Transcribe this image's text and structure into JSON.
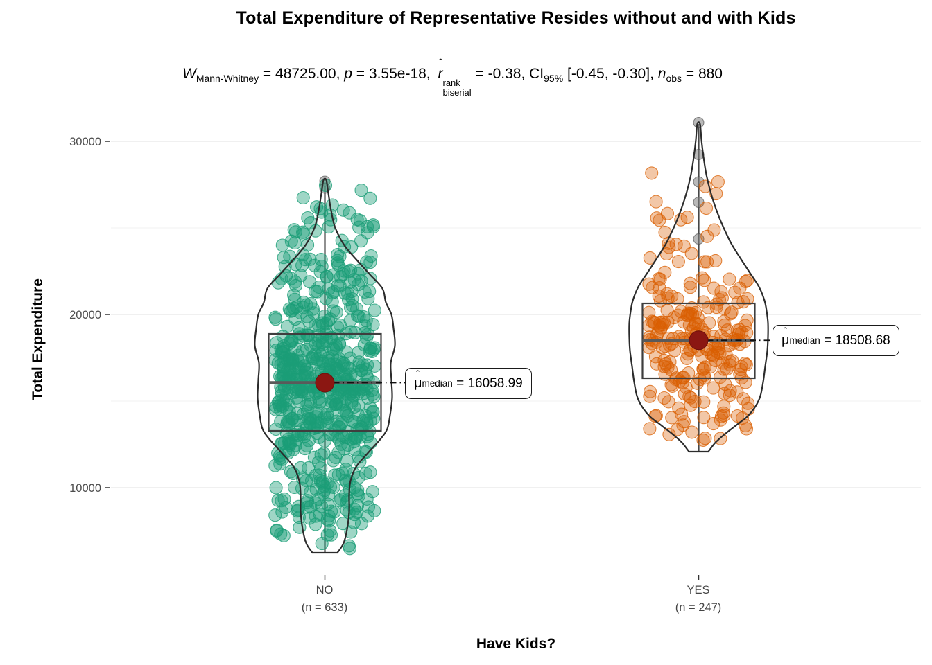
{
  "chart_data": {
    "type": "violin-box-scatter",
    "title": "Total Expenditure of Representative Resides without and with Kids",
    "xlabel": "Have Kids?",
    "ylabel": "Total Expenditure",
    "y_ticks": [
      "10000",
      "20000",
      "30000"
    ],
    "y_minor_ticks": [
      15000,
      25000
    ],
    "ylim": [
      4960,
      32000
    ],
    "grid": true,
    "legend_position": "none",
    "seed": 7,
    "stats_summary": {
      "W_Mann_Whitney": "48725.00",
      "p_value": "3.55e-18",
      "r_rank_biserial": "-0.38",
      "CI_95": "[-0.45, -0.30]",
      "n_obs": "880"
    },
    "subtitle_segments": [
      {
        "style": "italic",
        "text": "W"
      },
      {
        "style": "sub",
        "text": "Mann-Whitney"
      },
      {
        "style": "normal",
        "text": " = 48725.00, "
      },
      {
        "style": "italic",
        "text": "p"
      },
      {
        "style": "normal",
        "text": " = 3.55e-18, "
      },
      {
        "style": "rhat",
        "text": "r",
        "hat": "ˆ"
      },
      {
        "style": "stack",
        "sup": "rank",
        "sub": "biserial"
      },
      {
        "style": "normal",
        "text": " = -0.38, CI"
      },
      {
        "style": "sub",
        "text": "95%"
      },
      {
        "style": "normal",
        "text": " [-0.45, -0.30], "
      },
      {
        "style": "italic",
        "text": "n"
      },
      {
        "style": "sub",
        "text": "obs"
      },
      {
        "style": "normal",
        "text": " = 880"
      }
    ],
    "mu_label": {
      "symbol": "μ",
      "hat": "ˆ",
      "sub": "median",
      "eq": " = "
    },
    "groups": [
      {
        "label": "NO",
        "sublabel": "(n = 633)",
        "n": 633,
        "color": "#1B9E77",
        "alpha_fill": 0.42,
        "alpha_stroke": 0.8,
        "median": 16058.99,
        "median_label": "16058.99",
        "q1": 13280,
        "q3": 18880,
        "whisker_low": 6240,
        "whisker_high": 27440,
        "outliers_gray": [
          27700,
          27300
        ],
        "violin_profile": [
          [
            6240,
            18
          ],
          [
            6800,
            27
          ],
          [
            7600,
            32
          ],
          [
            8600,
            35
          ],
          [
            9600,
            35
          ],
          [
            10400,
            37
          ],
          [
            11200,
            45
          ],
          [
            12000,
            62
          ],
          [
            12800,
            80
          ],
          [
            13400,
            90
          ],
          [
            14200,
            94
          ],
          [
            15200,
            97
          ],
          [
            16200,
            96
          ],
          [
            17200,
            95
          ],
          [
            18200,
            101
          ],
          [
            19200,
            99
          ],
          [
            20000,
            96
          ],
          [
            20700,
            88
          ],
          [
            21500,
            83
          ],
          [
            22300,
            65
          ],
          [
            23100,
            47
          ],
          [
            24000,
            28
          ],
          [
            25000,
            15
          ],
          [
            26000,
            9
          ],
          [
            27000,
            5
          ],
          [
            27760,
            2
          ]
        ],
        "mixture": [
          {
            "m": 16100,
            "s": 2200,
            "w": 0.62
          },
          {
            "m": 9700,
            "s": 1900,
            "w": 0.18
          },
          {
            "m": 22300,
            "s": 2600,
            "w": 0.2
          }
        ],
        "range": [
          6400,
          27500
        ]
      },
      {
        "label": "YES",
        "sublabel": "(n = 247)",
        "n": 247,
        "color": "#D95F02",
        "alpha_fill": 0.35,
        "alpha_stroke": 0.75,
        "median": 18508.68,
        "median_label": "18508.68",
        "q1": 16320,
        "q3": 20640,
        "whisker_low": 12080,
        "whisker_high": 31000,
        "outliers_gray": [
          31080,
          29240,
          27660,
          26480,
          24360
        ],
        "violin_profile": [
          [
            12080,
            14
          ],
          [
            12600,
            24
          ],
          [
            13100,
            38
          ],
          [
            13600,
            54
          ],
          [
            14100,
            70
          ],
          [
            14700,
            82
          ],
          [
            15300,
            89
          ],
          [
            16100,
            93
          ],
          [
            17000,
            96
          ],
          [
            17900,
            99
          ],
          [
            18700,
            100
          ],
          [
            19500,
            100
          ],
          [
            20200,
            98
          ],
          [
            20800,
            95
          ],
          [
            21600,
            87
          ],
          [
            22400,
            74
          ],
          [
            23200,
            61
          ],
          [
            24100,
            47
          ],
          [
            25100,
            35
          ],
          [
            26100,
            25
          ],
          [
            27100,
            17
          ],
          [
            28100,
            11
          ],
          [
            29100,
            7
          ],
          [
            30100,
            4
          ],
          [
            31000,
            2
          ]
        ],
        "mixture": [
          {
            "m": 18600,
            "s": 1750,
            "w": 0.68
          },
          {
            "m": 14400,
            "s": 1150,
            "w": 0.12
          },
          {
            "m": 23000,
            "s": 2600,
            "w": 0.2
          }
        ],
        "range": [
          12150,
          30900
        ]
      }
    ],
    "colors": {
      "grid_major": "#E6E6E6",
      "grid_minor": "#F2F2F2",
      "tick_text": "#4D4D4D",
      "tick_mark": "#333333",
      "violin_stroke": "#2B2B2B",
      "box_stroke": "#3E3E3E",
      "median_line": "#5A5A5A",
      "median_point": "#8B1712",
      "outlier_gray_fill": "#808080",
      "outlier_gray_stroke": "#4D4D4D",
      "leader_line": "#111111"
    }
  }
}
